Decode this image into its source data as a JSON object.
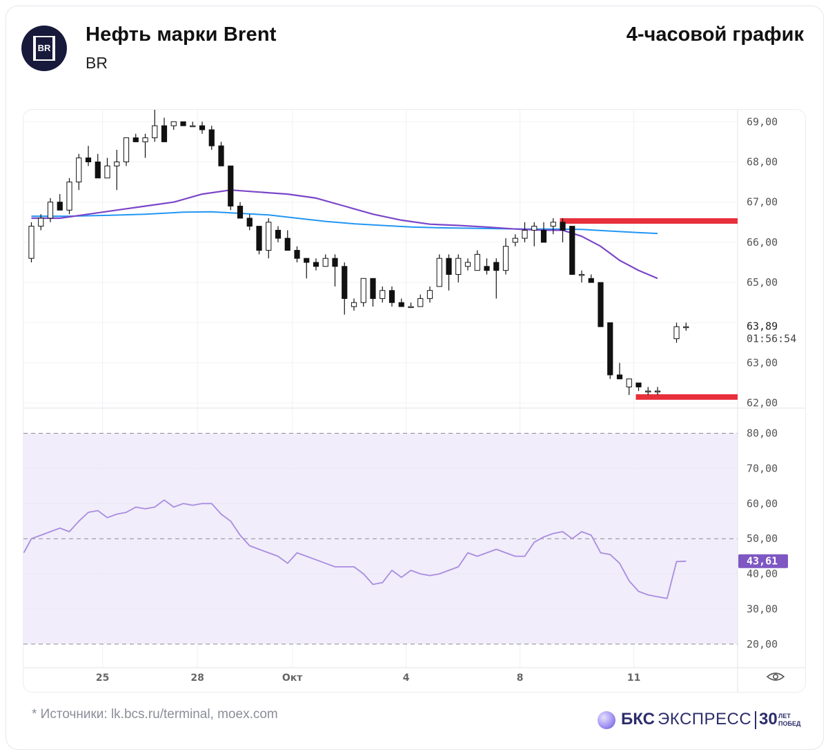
{
  "header": {
    "logo_text": "BR",
    "title": "Нефть марки Brent",
    "ticker": "BR",
    "timeframe": "4-часовой график"
  },
  "footer": {
    "source": "* Источники: lk.bcs.ru/terminal, moex.com",
    "brand_bks": "БКС",
    "brand_express": "ЭКСПРЕСС",
    "brand_years": "30",
    "brand_small_1": "ЛЕТ",
    "brand_small_2": "ПОБЕД"
  },
  "colors": {
    "bull": "#ffffff",
    "bear": "#111111",
    "ma_fast": "#7b45c8",
    "ma_slow": "#2196f3",
    "level": "#e8303c",
    "rsi": "#a88ce0",
    "rsi_band": "#f1edfa",
    "rsi_badge": "#7e57c2"
  },
  "chart_data": [
    {
      "type": "candlestick",
      "title": "Нефть марки Brent",
      "y_ticks": [
        "69,00",
        "68,00",
        "67,00",
        "66,00",
        "65,00",
        "64,00",
        "63,00",
        "62,00"
      ],
      "ylim": [
        61.9,
        69.3
      ],
      "x_ticks": [
        {
          "label": "25",
          "index": 7.5
        },
        {
          "label": "28",
          "index": 17.5
        },
        {
          "label": "Окт",
          "index": 27.5
        },
        {
          "label": "4",
          "index": 39.5
        },
        {
          "label": "8",
          "index": 51.5
        },
        {
          "label": "11",
          "index": 63.5
        }
      ],
      "candles": [
        [
          65.6,
          66.5,
          65.5,
          66.4
        ],
        [
          66.4,
          66.7,
          66.3,
          66.6
        ],
        [
          66.6,
          67.1,
          66.5,
          67.0
        ],
        [
          67.0,
          67.2,
          66.8,
          66.8
        ],
        [
          66.8,
          67.6,
          66.7,
          67.5
        ],
        [
          67.5,
          68.2,
          67.3,
          68.1
        ],
        [
          68.1,
          68.4,
          67.9,
          68.0
        ],
        [
          68.0,
          68.2,
          67.6,
          67.6
        ],
        [
          67.6,
          68.1,
          67.6,
          67.9
        ],
        [
          67.9,
          68.3,
          67.3,
          68.0
        ],
        [
          68.0,
          68.6,
          67.9,
          68.6
        ],
        [
          68.6,
          68.7,
          68.5,
          68.5
        ],
        [
          68.5,
          68.7,
          68.1,
          68.6
        ],
        [
          68.6,
          69.3,
          68.5,
          68.9
        ],
        [
          68.9,
          69.1,
          68.5,
          68.5
        ],
        [
          68.9,
          69.0,
          68.8,
          69.0
        ],
        [
          69.0,
          69.0,
          68.9,
          68.9
        ],
        [
          68.9,
          69.0,
          68.9,
          68.9
        ],
        [
          68.9,
          69.0,
          68.7,
          68.8
        ],
        [
          68.8,
          68.9,
          68.3,
          68.4
        ],
        [
          68.4,
          68.5,
          67.9,
          67.9
        ],
        [
          67.9,
          67.9,
          66.8,
          66.9
        ],
        [
          66.9,
          67.0,
          66.6,
          66.6
        ],
        [
          66.6,
          66.7,
          66.3,
          66.4
        ],
        [
          66.4,
          66.4,
          65.7,
          65.8
        ],
        [
          65.8,
          66.6,
          65.6,
          66.5
        ],
        [
          66.3,
          66.4,
          66.0,
          66.1
        ],
        [
          66.1,
          66.3,
          65.8,
          65.8
        ],
        [
          65.8,
          65.9,
          65.5,
          65.6
        ],
        [
          65.6,
          65.6,
          65.1,
          65.5
        ],
        [
          65.5,
          65.6,
          65.3,
          65.4
        ],
        [
          65.4,
          65.7,
          65.4,
          65.6
        ],
        [
          65.6,
          65.7,
          64.9,
          65.4
        ],
        [
          65.4,
          65.5,
          64.2,
          64.6
        ],
        [
          64.4,
          64.6,
          64.3,
          64.5
        ],
        [
          64.5,
          65.1,
          64.4,
          65.1
        ],
        [
          65.1,
          65.1,
          64.4,
          64.6
        ],
        [
          64.6,
          64.9,
          64.5,
          64.8
        ],
        [
          64.8,
          64.9,
          64.4,
          64.5
        ],
        [
          64.5,
          64.6,
          64.4,
          64.4
        ],
        [
          64.4,
          64.5,
          64.4,
          64.4
        ],
        [
          64.4,
          64.7,
          64.4,
          64.6
        ],
        [
          64.6,
          64.9,
          64.5,
          64.8
        ],
        [
          64.9,
          65.7,
          64.9,
          65.6
        ],
        [
          65.6,
          65.7,
          64.8,
          65.2
        ],
        [
          65.2,
          65.7,
          65.0,
          65.6
        ],
        [
          65.4,
          65.6,
          65.3,
          65.5
        ],
        [
          65.3,
          65.8,
          65.3,
          65.7
        ],
        [
          65.4,
          65.6,
          65.2,
          65.3
        ],
        [
          65.5,
          65.6,
          64.6,
          65.3
        ],
        [
          65.3,
          66.1,
          65.2,
          65.9
        ],
        [
          66.0,
          66.2,
          65.9,
          66.1
        ],
        [
          66.1,
          66.5,
          66.0,
          66.3
        ],
        [
          66.3,
          66.5,
          65.9,
          66.4
        ],
        [
          66.3,
          66.5,
          66.0,
          66.0
        ],
        [
          66.4,
          66.6,
          66.2,
          66.5
        ],
        [
          66.5,
          66.6,
          66.0,
          66.3
        ],
        [
          66.4,
          66.4,
          65.2,
          65.2
        ],
        [
          65.2,
          65.3,
          65.0,
          65.2
        ],
        [
          65.1,
          65.2,
          65.0,
          65.0
        ],
        [
          65.0,
          65.0,
          63.9,
          63.9
        ],
        [
          64.0,
          64.0,
          62.6,
          62.7
        ],
        [
          62.7,
          63.0,
          62.6,
          62.6
        ],
        [
          62.4,
          62.6,
          62.2,
          62.6
        ],
        [
          62.5,
          62.5,
          62.3,
          62.4
        ],
        [
          62.3,
          62.4,
          62.2,
          62.3
        ],
        [
          62.3,
          62.4,
          62.2,
          62.3
        ],
        null,
        [
          63.6,
          64.0,
          63.5,
          63.9
        ],
        [
          63.9,
          64.0,
          63.8,
          63.9
        ]
      ],
      "ma_fast": [
        [
          0,
          66.6
        ],
        [
          3,
          66.6
        ],
        [
          6,
          66.7
        ],
        [
          9,
          66.8
        ],
        [
          12,
          66.9
        ],
        [
          15,
          67.0
        ],
        [
          18,
          67.2
        ],
        [
          21,
          67.3
        ],
        [
          24,
          67.25
        ],
        [
          27,
          67.2
        ],
        [
          30,
          67.1
        ],
        [
          33,
          66.9
        ],
        [
          36,
          66.7
        ],
        [
          39,
          66.55
        ],
        [
          42,
          66.45
        ],
        [
          45,
          66.42
        ],
        [
          48,
          66.38
        ],
        [
          51,
          66.33
        ],
        [
          54,
          66.3
        ],
        [
          56,
          66.3
        ],
        [
          58,
          66.15
        ],
        [
          60,
          65.9
        ],
        [
          62,
          65.55
        ],
        [
          64,
          65.3
        ],
        [
          66,
          65.1
        ]
      ],
      "ma_slow": [
        [
          0,
          66.65
        ],
        [
          4,
          66.65
        ],
        [
          8,
          66.67
        ],
        [
          12,
          66.7
        ],
        [
          16,
          66.75
        ],
        [
          19,
          66.76
        ],
        [
          22,
          66.72
        ],
        [
          25,
          66.68
        ],
        [
          28,
          66.6
        ],
        [
          31,
          66.52
        ],
        [
          34,
          66.46
        ],
        [
          37,
          66.42
        ],
        [
          40,
          66.38
        ],
        [
          43,
          66.36
        ],
        [
          46,
          66.35
        ],
        [
          49,
          66.34
        ],
        [
          52,
          66.33
        ],
        [
          55,
          66.33
        ],
        [
          58,
          66.32
        ],
        [
          61,
          66.28
        ],
        [
          64,
          66.24
        ],
        [
          66,
          66.22
        ]
      ],
      "levels": [
        {
          "value": 66.53,
          "from_index": 56
        },
        {
          "value": 62.15,
          "from_index": 64
        }
      ],
      "last_price": "63,89",
      "countdown": "01:56:54"
    },
    {
      "type": "line",
      "indicator": "RSI",
      "y_ticks": [
        "80,00",
        "70,00",
        "60,00",
        "50,00",
        "40,00",
        "30,00",
        "20,00"
      ],
      "ylim": [
        15,
        85
      ],
      "band": [
        20,
        80
      ],
      "midline": 50,
      "values": [
        46,
        50,
        51,
        52,
        53,
        52,
        55,
        57.5,
        58,
        56,
        57,
        57.5,
        59,
        58.5,
        59,
        61,
        59,
        60,
        59.5,
        60,
        60,
        57,
        55,
        51,
        48,
        47,
        46,
        45,
        43,
        46,
        45,
        44,
        43,
        42,
        42,
        42,
        40,
        37,
        37.5,
        41,
        39,
        41,
        40,
        39.5,
        40,
        41,
        42,
        46,
        45,
        46,
        47,
        46,
        45,
        45,
        49,
        50.5,
        51.5,
        52,
        50,
        52,
        51,
        46,
        45.5,
        43,
        38,
        35,
        34,
        33.5,
        33,
        43.5,
        43.6
      ],
      "x_values": [
        -0.8,
        0,
        1,
        2,
        3,
        4,
        5,
        6,
        7,
        8,
        9,
        10,
        11,
        12,
        13,
        14,
        15,
        16,
        17,
        18,
        19,
        20,
        21,
        22,
        23,
        24,
        25,
        26,
        27,
        28,
        29,
        30,
        31,
        32,
        33,
        34,
        35,
        36,
        37,
        38,
        39,
        40,
        41,
        42,
        43,
        44,
        45,
        46,
        47,
        48,
        49,
        50,
        51,
        52,
        53,
        54,
        55,
        56,
        57,
        58,
        59,
        60,
        61,
        62,
        63,
        64,
        65,
        66,
        67,
        68,
        69
      ],
      "last_value": "43,61"
    }
  ]
}
